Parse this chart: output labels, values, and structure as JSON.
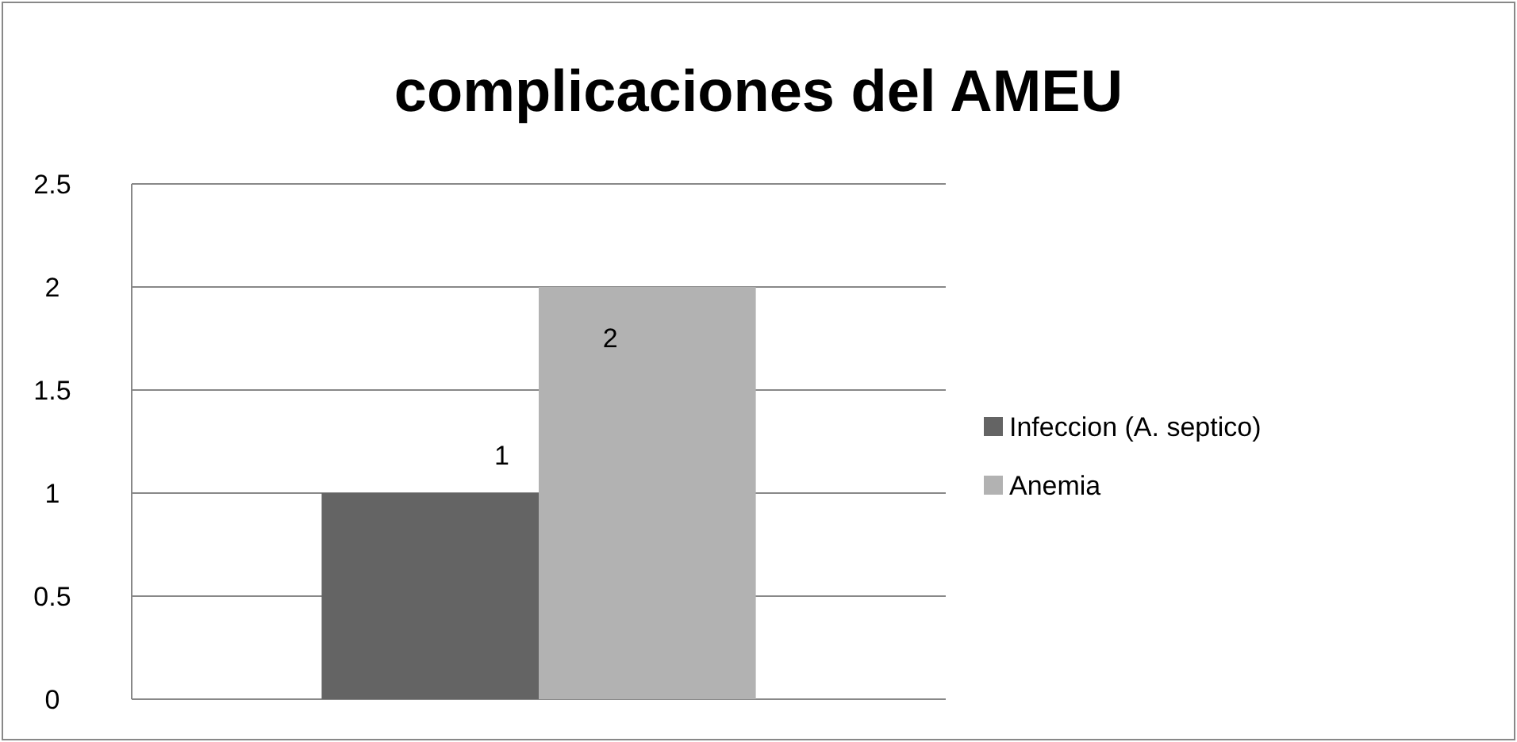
{
  "chart_data": {
    "type": "bar",
    "title": "complicaciones del AMEU",
    "categories": [
      null
    ],
    "series": [
      {
        "name": "Infeccion (A. septico)",
        "color": "#646464",
        "values": [
          1
        ]
      },
      {
        "name": "Anemia",
        "color": "#b2b2b2",
        "values": [
          2
        ]
      }
    ],
    "ylim": [
      0,
      2.5
    ],
    "yticks": [
      0,
      0.5,
      1,
      1.5,
      2,
      2.5
    ],
    "grid": "y",
    "legend": "right",
    "data_labels": true
  }
}
